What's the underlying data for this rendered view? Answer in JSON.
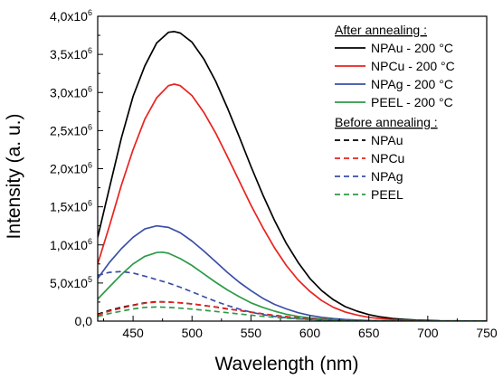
{
  "chart_data": {
    "type": "line",
    "title": "",
    "xlabel": "Wavelength (nm)",
    "ylabel": "Intensity (a. u.)",
    "xlim": [
      420,
      750
    ],
    "ylim": [
      0,
      4000000
    ],
    "grid": false,
    "legend_position": "top-right",
    "x_ticks": [
      {
        "value": 450,
        "label": "450"
      },
      {
        "value": 500,
        "label": "500"
      },
      {
        "value": 550,
        "label": "550"
      },
      {
        "value": 600,
        "label": "600"
      },
      {
        "value": 650,
        "label": "650"
      },
      {
        "value": 700,
        "label": "700"
      },
      {
        "value": 750,
        "label": "750"
      }
    ],
    "y_ticks": [
      {
        "value": 0,
        "label": "0,0",
        "exp": ""
      },
      {
        "value": 500000,
        "label": "5,0x10",
        "exp": "5"
      },
      {
        "value": 1000000,
        "label": "1,0x10",
        "exp": "6"
      },
      {
        "value": 1500000,
        "label": "1,5x10",
        "exp": "6"
      },
      {
        "value": 2000000,
        "label": "2,0x10",
        "exp": "6"
      },
      {
        "value": 2500000,
        "label": "2,5x10",
        "exp": "6"
      },
      {
        "value": 3000000,
        "label": "3,0x10",
        "exp": "6"
      },
      {
        "value": 3500000,
        "label": "3,5x10",
        "exp": "6"
      },
      {
        "value": 4000000,
        "label": "4,0x10",
        "exp": "6"
      }
    ],
    "legend_groups": [
      {
        "heading": "After annealing :",
        "entries": [
          0,
          1,
          2,
          3
        ]
      },
      {
        "heading": "Before annealing :",
        "entries": [
          4,
          5,
          6,
          7
        ]
      }
    ],
    "series": [
      {
        "name": "NPAu - 200 °C",
        "color": "#000000",
        "dash": "solid",
        "x": [
          420,
          430,
          440,
          450,
          460,
          470,
          480,
          485,
          490,
          500,
          510,
          520,
          530,
          540,
          550,
          560,
          570,
          580,
          590,
          600,
          610,
          620,
          630,
          640,
          650,
          660,
          670,
          680,
          690,
          700,
          710,
          720,
          730,
          740,
          750
        ],
        "y": [
          1100000,
          1750000,
          2400000,
          2950000,
          3350000,
          3650000,
          3790000,
          3800000,
          3780000,
          3660000,
          3440000,
          3150000,
          2800000,
          2420000,
          2030000,
          1660000,
          1320000,
          1020000,
          770000,
          560000,
          400000,
          280000,
          190000,
          130000,
          85000,
          55000,
          35000,
          22000,
          14000,
          9000,
          5000,
          3000,
          2000,
          1000,
          0
        ]
      },
      {
        "name": "NPCu - 200 °C",
        "color": "#e8231e",
        "dash": "solid",
        "x": [
          420,
          430,
          440,
          450,
          460,
          470,
          480,
          485,
          490,
          500,
          510,
          520,
          530,
          540,
          550,
          560,
          570,
          580,
          590,
          600,
          610,
          620,
          630,
          640,
          650,
          660,
          670,
          680,
          690,
          700,
          710,
          720,
          730,
          740,
          750
        ],
        "y": [
          750000,
          1250000,
          1780000,
          2250000,
          2650000,
          2930000,
          3090000,
          3110000,
          3090000,
          2960000,
          2740000,
          2470000,
          2160000,
          1840000,
          1520000,
          1230000,
          960000,
          730000,
          540000,
          390000,
          270000,
          180000,
          120000,
          80000,
          50000,
          32000,
          20000,
          12000,
          7000,
          4000,
          2500,
          1500,
          1000,
          500,
          0
        ]
      },
      {
        "name": "NPAg - 200 °C",
        "color": "#3a4fa6",
        "dash": "solid",
        "x": [
          420,
          430,
          440,
          450,
          460,
          470,
          480,
          490,
          500,
          510,
          520,
          530,
          540,
          550,
          560,
          570,
          580,
          590,
          600,
          610,
          620,
          630,
          640,
          650,
          660,
          670,
          680,
          690,
          700,
          710,
          720,
          730,
          740,
          750
        ],
        "y": [
          560000,
          770000,
          950000,
          1100000,
          1210000,
          1250000,
          1230000,
          1160000,
          1050000,
          920000,
          780000,
          640000,
          510000,
          400000,
          300000,
          220000,
          160000,
          110000,
          75000,
          50000,
          33000,
          21000,
          13000,
          8000,
          5000,
          3000,
          2000,
          1000,
          500,
          300,
          200,
          100,
          50,
          0
        ]
      },
      {
        "name": "PEEL - 200 °C",
        "color": "#2e9a48",
        "dash": "solid",
        "x": [
          420,
          430,
          440,
          450,
          460,
          470,
          475,
          480,
          490,
          500,
          510,
          520,
          530,
          540,
          550,
          560,
          570,
          580,
          590,
          600,
          610,
          620,
          630,
          640,
          650,
          660,
          670,
          680,
          690,
          700,
          710,
          720,
          730,
          740,
          750
        ],
        "y": [
          290000,
          450000,
          610000,
          750000,
          850000,
          900000,
          905000,
          890000,
          820000,
          730000,
          620000,
          510000,
          410000,
          320000,
          240000,
          180000,
          130000,
          90000,
          62000,
          42000,
          28000,
          18000,
          11000,
          7000,
          4000,
          2500,
          1500,
          1000,
          500,
          300,
          200,
          100,
          50,
          20,
          0
        ]
      },
      {
        "name": "NPAu",
        "color": "#000000",
        "dash": "dashed",
        "x": [
          420,
          430,
          440,
          450,
          460,
          470,
          480,
          490,
          500,
          510,
          520,
          530,
          540,
          550,
          560,
          570,
          580,
          590,
          600,
          610,
          620,
          630,
          640,
          650,
          660,
          670,
          680,
          690,
          700,
          710,
          720,
          730,
          740,
          750
        ],
        "y": [
          90000,
          140000,
          180000,
          210000,
          240000,
          255000,
          250000,
          240000,
          225000,
          205000,
          185000,
          160000,
          140000,
          118000,
          95000,
          75000,
          58000,
          43000,
          30000,
          21000,
          14000,
          9000,
          6000,
          4000,
          2500,
          1500,
          1000,
          500,
          300,
          200,
          100,
          50,
          20,
          0
        ]
      },
      {
        "name": "NPCu",
        "color": "#e8231e",
        "dash": "dashed",
        "x": [
          420,
          430,
          440,
          450,
          460,
          470,
          480,
          490,
          500,
          510,
          520,
          530,
          540,
          550,
          560,
          570,
          580,
          590,
          600,
          610,
          620,
          630,
          640,
          650,
          660,
          670,
          680,
          690,
          700,
          710,
          720,
          730,
          740,
          750
        ],
        "y": [
          80000,
          130000,
          170000,
          205000,
          235000,
          250000,
          250000,
          240000,
          225000,
          205000,
          185000,
          160000,
          140000,
          118000,
          95000,
          75000,
          58000,
          43000,
          30000,
          21000,
          14000,
          9000,
          6000,
          4000,
          2500,
          1500,
          1000,
          500,
          300,
          200,
          100,
          50,
          20,
          0
        ]
      },
      {
        "name": "NPAg",
        "color": "#3a4fa6",
        "dash": "dashed",
        "x": [
          420,
          430,
          440,
          450,
          460,
          470,
          480,
          490,
          500,
          510,
          520,
          530,
          540,
          550,
          560,
          570,
          580,
          590,
          600,
          610,
          620,
          630,
          640,
          650,
          660,
          670,
          680,
          690,
          700,
          710,
          720,
          730,
          740,
          750
        ],
        "y": [
          600000,
          640000,
          650000,
          630000,
          590000,
          545000,
          500000,
          445000,
          385000,
          320000,
          260000,
          205000,
          158000,
          118000,
          86000,
          62000,
          44000,
          31000,
          21000,
          14000,
          9000,
          6000,
          4000,
          2500,
          1500,
          1000,
          600,
          400,
          200,
          100,
          50,
          30,
          10,
          0
        ]
      },
      {
        "name": "PEEL",
        "color": "#2e9a48",
        "dash": "dashed",
        "x": [
          420,
          430,
          440,
          450,
          460,
          470,
          480,
          490,
          500,
          510,
          520,
          530,
          540,
          550,
          560,
          570,
          580,
          590,
          600,
          610,
          620,
          630,
          640,
          650,
          660,
          670,
          680,
          690,
          700,
          710,
          720,
          730,
          740,
          750
        ],
        "y": [
          60000,
          100000,
          130000,
          160000,
          180000,
          185000,
          180000,
          170000,
          158000,
          143000,
          127000,
          110000,
          94000,
          78000,
          63000,
          50000,
          38000,
          28000,
          20000,
          14000,
          9000,
          6000,
          4000,
          2500,
          1500,
          1000,
          600,
          400,
          200,
          100,
          50,
          30,
          10,
          0
        ]
      }
    ]
  }
}
